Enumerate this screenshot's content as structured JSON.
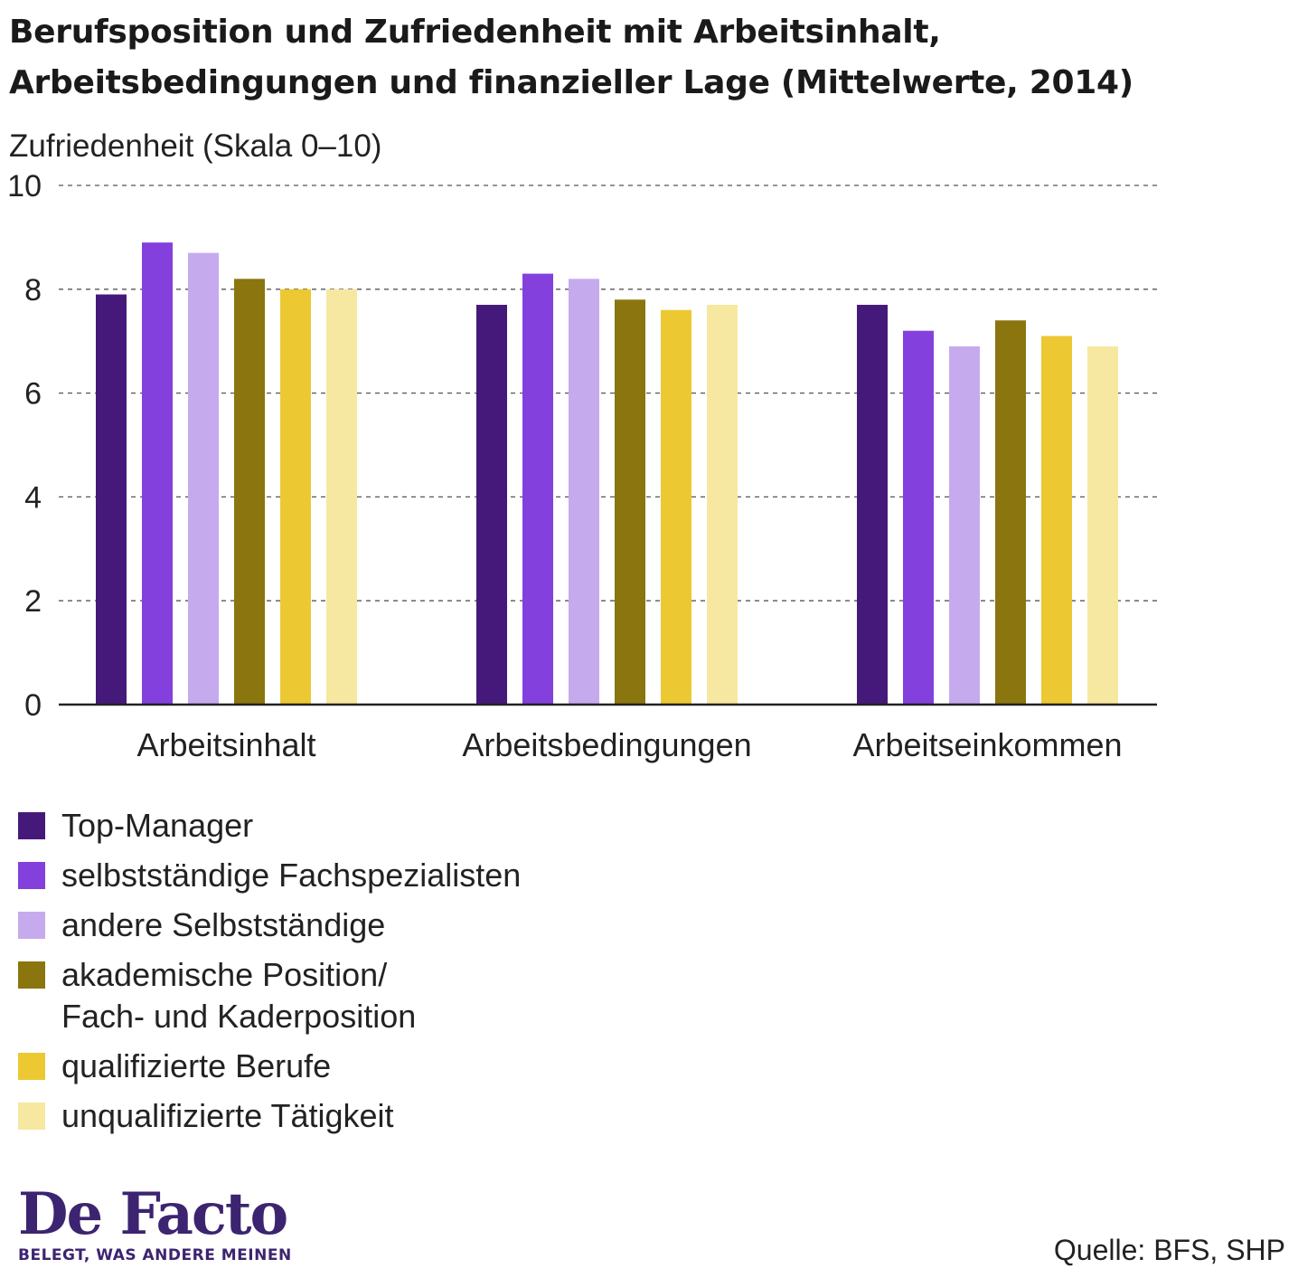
{
  "header": {
    "title_line1": "Berufsposition und Zufriedenheit mit Arbeitsinhalt,",
    "title_line2": "Arbeitsbedingungen und finanzieller Lage (Mittelwerte, 2014)"
  },
  "footer": {
    "logo_text": "De Facto",
    "logo_tagline": "BELEGT, WAS ANDERE MEINEN",
    "source": "Quelle: BFS, SHP"
  },
  "chart_data": {
    "type": "bar",
    "title": "Berufsposition und Zufriedenheit mit Arbeitsinhalt, Arbeitsbedingungen und finanzieller Lage (Mittelwerte, 2014)",
    "ylabel": "Zufriedenheit (Skala 0–10)",
    "xlabel": "",
    "ylim": [
      0,
      10
    ],
    "yticks": [
      "0",
      "2",
      "4",
      "6",
      "8",
      "10"
    ],
    "grid": true,
    "legend_position": "bottom-left",
    "categories": [
      "Arbeitsinhalt",
      "Arbeitsbedingungen",
      "Arbeitseinkommen"
    ],
    "series": [
      {
        "name": "Top-Manager",
        "color": "#45197a",
        "values": [
          7.9,
          7.7,
          7.7
        ]
      },
      {
        "name": "selbstständige Fachspezialisten",
        "color": "#8340dd",
        "values": [
          8.9,
          8.3,
          7.2
        ]
      },
      {
        "name": "andere Selbstständige",
        "color": "#c6aaee",
        "values": [
          8.7,
          8.2,
          6.9
        ]
      },
      {
        "name": "akademische Position/\nFach- und Kaderposition",
        "color": "#8a750f",
        "values": [
          8.2,
          7.8,
          7.4
        ]
      },
      {
        "name": "qualifizierte Berufe",
        "color": "#ecc832",
        "values": [
          8.0,
          7.6,
          7.1
        ]
      },
      {
        "name": "unqualifizierte Tätigkeit",
        "color": "#f6e8a0",
        "values": [
          8.0,
          7.7,
          6.9
        ]
      }
    ]
  }
}
